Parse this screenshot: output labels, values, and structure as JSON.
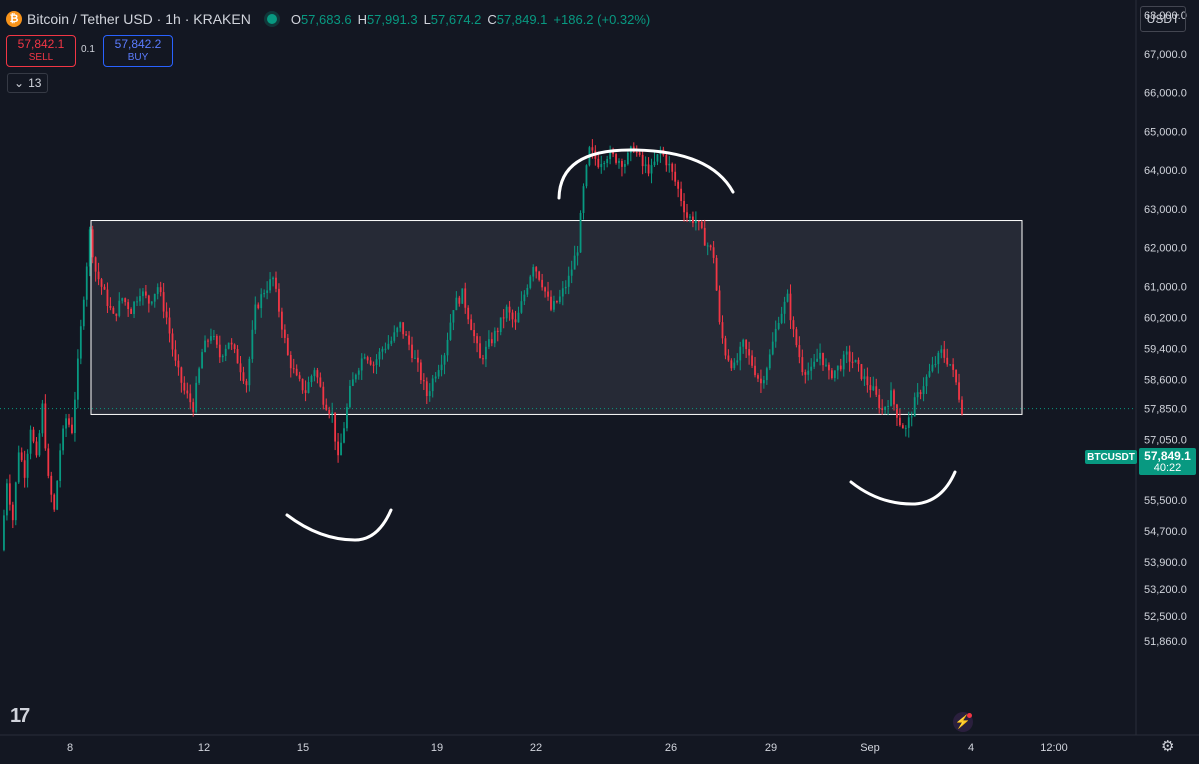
{
  "header": {
    "title": "Bitcoin / Tether USD · 1h · KRAKEN",
    "coin_glyph": "₿",
    "ohlc": [
      {
        "key": "O",
        "value": "57,683.6"
      },
      {
        "key": "H",
        "value": "57,991.3"
      },
      {
        "key": "L",
        "value": "57,674.2"
      },
      {
        "key": "C",
        "value": "57,849.1"
      }
    ],
    "change": "+186.2 (+0.32%)"
  },
  "trade": {
    "sell_price": "57,842.1",
    "sell_label": "SELL",
    "buy_price": "57,842.2",
    "buy_label": "BUY",
    "spread": "0.1"
  },
  "indicators_badge": {
    "icon": "chevron-down-icon",
    "count": "13"
  },
  "currency_button": "USDT",
  "price_tag": {
    "symbol": "BTCUSDT",
    "price": "57,849.1",
    "countdown": "40:22"
  },
  "colors": {
    "background": "#131722",
    "up": "#089981",
    "down": "#f23645",
    "box_fill": "#2a2e39",
    "box_stroke": "#ffffff",
    "axis_text": "#d1d4dc"
  },
  "chart_data": {
    "type": "candlestick",
    "symbol": "BTCUSDT",
    "interval": "1h",
    "x_tick_labels": [
      "8",
      "12",
      "15",
      "19",
      "22",
      "26",
      "29",
      "Sep",
      "4",
      "12:00"
    ],
    "y_tick_labels": [
      "68,000.0",
      "67,000.0",
      "66,000.0",
      "65,000.0",
      "64,000.0",
      "63,000.0",
      "62,000.0",
      "61,000.0",
      "60,200.0",
      "59,400.0",
      "58,600.0",
      "57,850.0",
      "57,050.0",
      "56,300.0",
      "55,500.0",
      "54,700.0",
      "53,900.0",
      "53,200.0",
      "52,500.0",
      "51,860.0"
    ],
    "y_tick_values": [
      68000,
      67000,
      66000,
      65000,
      64000,
      63000,
      62000,
      61000,
      60200,
      59400,
      58600,
      57850,
      57050,
      56300,
      55500,
      54700,
      53900,
      53200,
      52500,
      51860
    ],
    "ylim": [
      51600,
      68400
    ],
    "last_price": 57849.1,
    "close_path": [
      [
        0,
        54200
      ],
      [
        2,
        56000
      ],
      [
        4,
        55000
      ],
      [
        6,
        56800
      ],
      [
        8,
        56200
      ],
      [
        10,
        57400
      ],
      [
        12,
        56500
      ],
      [
        14,
        57900
      ],
      [
        16,
        56000
      ],
      [
        18,
        55200
      ],
      [
        20,
        56800
      ],
      [
        22,
        57600
      ],
      [
        24,
        57300
      ],
      [
        26,
        59000
      ],
      [
        28,
        60800
      ],
      [
        30,
        62400
      ],
      [
        32,
        61400
      ],
      [
        35,
        60800
      ],
      [
        38,
        60200
      ],
      [
        41,
        60700
      ],
      [
        44,
        60400
      ],
      [
        47,
        60900
      ],
      [
        50,
        60600
      ],
      [
        53,
        61000
      ],
      [
        56,
        60200
      ],
      [
        59,
        59000
      ],
      [
        62,
        58300
      ],
      [
        65,
        57900
      ],
      [
        68,
        59300
      ],
      [
        71,
        59800
      ],
      [
        74,
        59200
      ],
      [
        77,
        59600
      ],
      [
        80,
        59100
      ],
      [
        83,
        58500
      ],
      [
        86,
        60400
      ],
      [
        89,
        60900
      ],
      [
        92,
        61200
      ],
      [
        94,
        60400
      ],
      [
        97,
        59200
      ],
      [
        100,
        58600
      ],
      [
        103,
        58300
      ],
      [
        106,
        58900
      ],
      [
        109,
        58100
      ],
      [
        112,
        57700
      ],
      [
        114,
        56500
      ],
      [
        116,
        57400
      ],
      [
        118,
        58300
      ],
      [
        120,
        58800
      ],
      [
        123,
        59300
      ],
      [
        126,
        59000
      ],
      [
        129,
        59400
      ],
      [
        132,
        59600
      ],
      [
        135,
        60000
      ],
      [
        138,
        59500
      ],
      [
        141,
        58900
      ],
      [
        144,
        58200
      ],
      [
        147,
        58800
      ],
      [
        150,
        59300
      ],
      [
        153,
        60500
      ],
      [
        156,
        60800
      ],
      [
        159,
        60000
      ],
      [
        162,
        59100
      ],
      [
        165,
        59500
      ],
      [
        168,
        59900
      ],
      [
        171,
        60400
      ],
      [
        174,
        60000
      ],
      [
        177,
        60800
      ],
      [
        180,
        61600
      ],
      [
        183,
        61100
      ],
      [
        186,
        60400
      ],
      [
        189,
        60700
      ],
      [
        192,
        61200
      ],
      [
        195,
        62000
      ],
      [
        197,
        63500
      ],
      [
        199,
        64500
      ],
      [
        202,
        64200
      ],
      [
        205,
        64400
      ],
      [
        208,
        64300
      ],
      [
        211,
        64200
      ],
      [
        214,
        64600
      ],
      [
        217,
        64100
      ],
      [
        220,
        64000
      ],
      [
        223,
        64500
      ],
      [
        226,
        64100
      ],
      [
        229,
        63500
      ],
      [
        232,
        62800
      ],
      [
        235,
        62700
      ],
      [
        238,
        62200
      ],
      [
        241,
        61800
      ],
      [
        243,
        60000
      ],
      [
        245,
        59300
      ],
      [
        248,
        58900
      ],
      [
        251,
        59500
      ],
      [
        254,
        59000
      ],
      [
        257,
        58500
      ],
      [
        260,
        59200
      ],
      [
        263,
        60200
      ],
      [
        266,
        60700
      ],
      [
        268,
        59800
      ],
      [
        271,
        58900
      ],
      [
        274,
        58800
      ],
      [
        277,
        59300
      ],
      [
        280,
        58700
      ],
      [
        283,
        58900
      ],
      [
        286,
        59200
      ],
      [
        289,
        59000
      ],
      [
        292,
        58600
      ],
      [
        295,
        58300
      ],
      [
        298,
        57800
      ],
      [
        301,
        58200
      ],
      [
        304,
        57500
      ],
      [
        306,
        57300
      ],
      [
        309,
        58000
      ],
      [
        312,
        58500
      ],
      [
        315,
        58900
      ],
      [
        318,
        59300
      ],
      [
        321,
        59000
      ],
      [
        323,
        58500
      ],
      [
        325,
        57850
      ]
    ],
    "highlight_box": {
      "price_top": 62700,
      "price_bottom": 57700
    },
    "annotations": [
      {
        "type": "arc",
        "shape": "cup",
        "description": "lower sweep"
      },
      {
        "type": "arc",
        "shape": "cap",
        "description": "upper sweep"
      },
      {
        "type": "arc",
        "shape": "cup",
        "description": "lower sweep"
      }
    ]
  }
}
